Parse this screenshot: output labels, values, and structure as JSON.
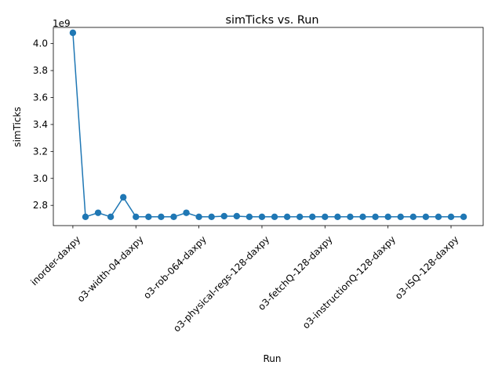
{
  "chart_data": {
    "type": "line",
    "title": "simTicks vs. Run",
    "xlabel": "Run",
    "ylabel": "simTicks",
    "y_offset_text": "1e9",
    "y_scale": 1000000000,
    "ylim": [
      2.65,
      4.12
    ],
    "y_ticks": [
      2.8,
      3.0,
      3.2,
      3.4,
      3.6,
      3.8,
      4.0
    ],
    "y_tick_labels": [
      "2.8",
      "3.0",
      "3.2",
      "3.4",
      "3.6",
      "3.8",
      "4.0"
    ],
    "x_tick_indices": [
      0,
      5,
      10,
      15,
      20,
      25,
      30
    ],
    "x_tick_labels": [
      "inorder-daxpy",
      "o3-width-04-daxpy",
      "o3-rob-064-daxpy",
      "o3-physical-regs-128-daxpy",
      "o3-fetchQ-128-daxpy",
      "o3-instructionQ-128-daxpy",
      "o3-lSQ-128-daxpy"
    ],
    "grid": false,
    "color": "#1f77b4",
    "series": [
      {
        "values": [
          4.08,
          2.715,
          2.745,
          2.715,
          2.86,
          2.715,
          2.715,
          2.715,
          2.715,
          2.745,
          2.715,
          2.715,
          2.72,
          2.72,
          2.715,
          2.715,
          2.715,
          2.715,
          2.715,
          2.715,
          2.715,
          2.715,
          2.715,
          2.715,
          2.715,
          2.715,
          2.715,
          2.715,
          2.715,
          2.715,
          2.715,
          2.715
        ]
      }
    ]
  }
}
